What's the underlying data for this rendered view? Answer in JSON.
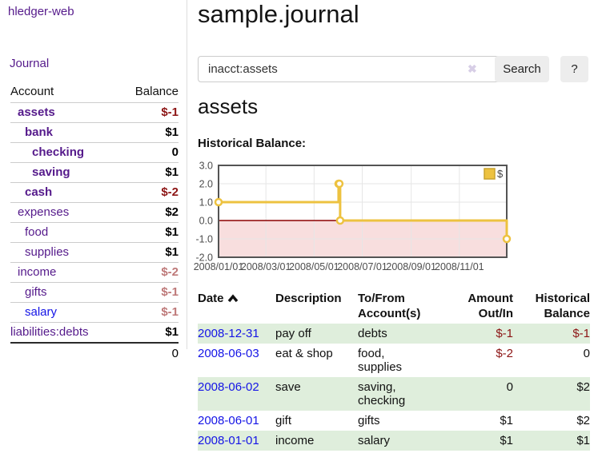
{
  "app": {
    "brand": "hledger-web",
    "nav_journal": "Journal"
  },
  "colors": {
    "link_purple": "#551A8B",
    "link_blue": "#1414E6",
    "negative": "#8C1414",
    "negative_muted": "#BE7979",
    "stripe_green": "#dfeedc",
    "series_yellow": "#EDC240",
    "zero_line": "#8B0000",
    "negative_region": "#F8DEDE"
  },
  "sidebar": {
    "header": {
      "account": "Account",
      "balance": "Balance"
    },
    "accounts": [
      {
        "name": "assets",
        "indent": 1,
        "bold": true,
        "link_color": "visited",
        "balance": "$-1",
        "balance_style": "negstrong"
      },
      {
        "name": "bank",
        "indent": 2,
        "bold": true,
        "link_color": "visited",
        "balance": "$1",
        "balance_style": "normal"
      },
      {
        "name": "checking",
        "indent": 3,
        "bold": true,
        "link_color": "visited",
        "balance": "0",
        "balance_style": "normal"
      },
      {
        "name": "saving",
        "indent": 3,
        "bold": true,
        "link_color": "visited",
        "balance": "$1",
        "balance_style": "normal"
      },
      {
        "name": "cash",
        "indent": 2,
        "bold": true,
        "link_color": "visited",
        "balance": "$-2",
        "balance_style": "negstrong"
      },
      {
        "name": "expenses",
        "indent": 1,
        "bold": false,
        "link_color": "visited",
        "balance": "$2",
        "balance_style": "normal"
      },
      {
        "name": "food",
        "indent": 2,
        "bold": false,
        "link_color": "visited",
        "balance": "$1",
        "balance_style": "normal"
      },
      {
        "name": "supplies",
        "indent": 2,
        "bold": false,
        "link_color": "visited",
        "balance": "$1",
        "balance_style": "normal"
      },
      {
        "name": "income",
        "indent": 1,
        "bold": false,
        "link_color": "visited",
        "balance": "$-2",
        "balance_style": "negmuted"
      },
      {
        "name": "gifts",
        "indent": 2,
        "bold": false,
        "link_color": "visited",
        "balance": "$-1",
        "balance_style": "negmuted"
      },
      {
        "name": "salary",
        "indent": 2,
        "bold": false,
        "link_color": "unvisited",
        "balance": "$-1",
        "balance_style": "negmuted"
      },
      {
        "name": "liabilities:debts",
        "indent": 0,
        "bold": false,
        "link_color": "visited",
        "balance": "$1",
        "balance_style": "normal"
      }
    ],
    "total": "0"
  },
  "header": {
    "title": "sample.journal"
  },
  "search": {
    "value": "inacct:assets",
    "clear_icon": "✖",
    "search_label": "Search",
    "help_label": "?"
  },
  "account_page": {
    "title": "assets",
    "chart_label": "Historical Balance:"
  },
  "chart_data": {
    "type": "line",
    "step": true,
    "title": "Historical Balance",
    "xrange": [
      "2008-01-01",
      "2008-12-31"
    ],
    "ylim": [
      -2.0,
      3.0
    ],
    "yticks": [
      3.0,
      2.0,
      1.0,
      0.0,
      -1.0,
      -2.0
    ],
    "xticks": [
      "2008/01/01",
      "2008/03/01",
      "2008/05/01",
      "2008/07/01",
      "2008/09/01",
      "2008/11/01"
    ],
    "grid": true,
    "legend_position": "top-right",
    "series": [
      {
        "name": "$",
        "color": "#EDC240",
        "points": [
          {
            "x": "2008-01-01",
            "y": 1.0
          },
          {
            "x": "2008-06-01",
            "y": 2.0
          },
          {
            "x": "2008-06-02",
            "y": 2.0
          },
          {
            "x": "2008-06-03",
            "y": 0.0
          },
          {
            "x": "2008-12-31",
            "y": -1.0
          }
        ]
      }
    ],
    "zero_line_color": "#8B0000",
    "negative_region_fill": "#F8DEDE"
  },
  "register": {
    "columns": {
      "date": "Date",
      "description": "Description",
      "accounts_line1": "To/From",
      "accounts_line2": "Account(s)",
      "amount_line1": "Amount",
      "amount_line2": "Out/In",
      "balance_line1": "Historical",
      "balance_line2": "Balance"
    },
    "rows": [
      {
        "date": "2008-12-31",
        "description": "pay off",
        "accounts": "debts",
        "amount": "$-1",
        "amount_neg": true,
        "balance": "$-1",
        "balance_neg": true,
        "stripe": true
      },
      {
        "date": "2008-06-03",
        "description": "eat & shop",
        "accounts": "food, supplies",
        "amount": "$-2",
        "amount_neg": true,
        "balance": "0",
        "balance_neg": false,
        "stripe": false
      },
      {
        "date": "2008-06-02",
        "description": "save",
        "accounts": "saving, checking",
        "amount": "0",
        "amount_neg": false,
        "balance": "$2",
        "balance_neg": false,
        "stripe": true
      },
      {
        "date": "2008-06-01",
        "description": "gift",
        "accounts": "gifts",
        "amount": "$1",
        "amount_neg": false,
        "balance": "$2",
        "balance_neg": false,
        "stripe": false
      },
      {
        "date": "2008-01-01",
        "description": "income",
        "accounts": "salary",
        "amount": "$1",
        "amount_neg": false,
        "balance": "$1",
        "balance_neg": false,
        "stripe": true
      }
    ]
  }
}
